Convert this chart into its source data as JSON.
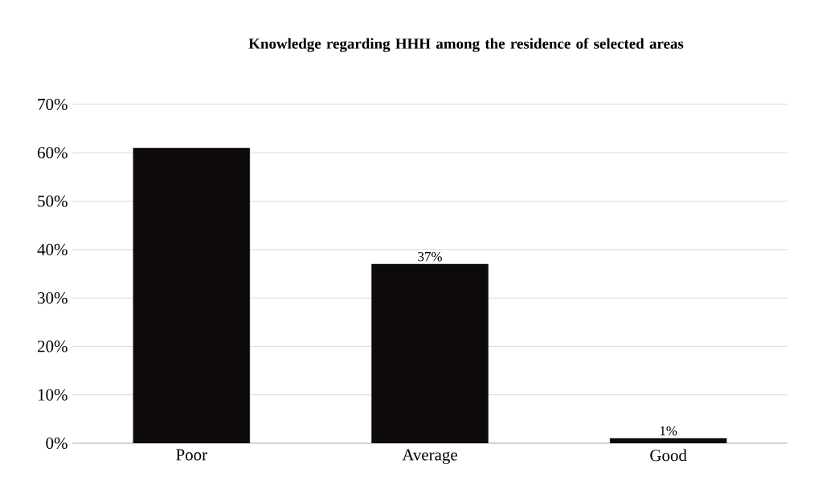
{
  "chart_data": {
    "type": "bar",
    "title": "Knowledge regarding HHH among the residence of selected areas",
    "categories": [
      "Poor",
      "Average",
      "Good"
    ],
    "values": [
      61,
      37,
      1
    ],
    "color": "#0f0a0a",
    "value_labels": [
      null,
      "37%",
      "1%"
    ],
    "ylim": [
      0,
      70
    ],
    "yticks": [
      {
        "value": 0,
        "label": "0%"
      },
      {
        "value": 10,
        "label": "10%"
      },
      {
        "value": 20,
        "label": "20%"
      },
      {
        "value": 30,
        "label": "30%"
      },
      {
        "value": 40,
        "label": "40%"
      },
      {
        "value": 50,
        "label": "50%"
      },
      {
        "value": 60,
        "label": "60%"
      },
      {
        "value": 70,
        "label": "70%"
      }
    ],
    "grid": "y"
  }
}
